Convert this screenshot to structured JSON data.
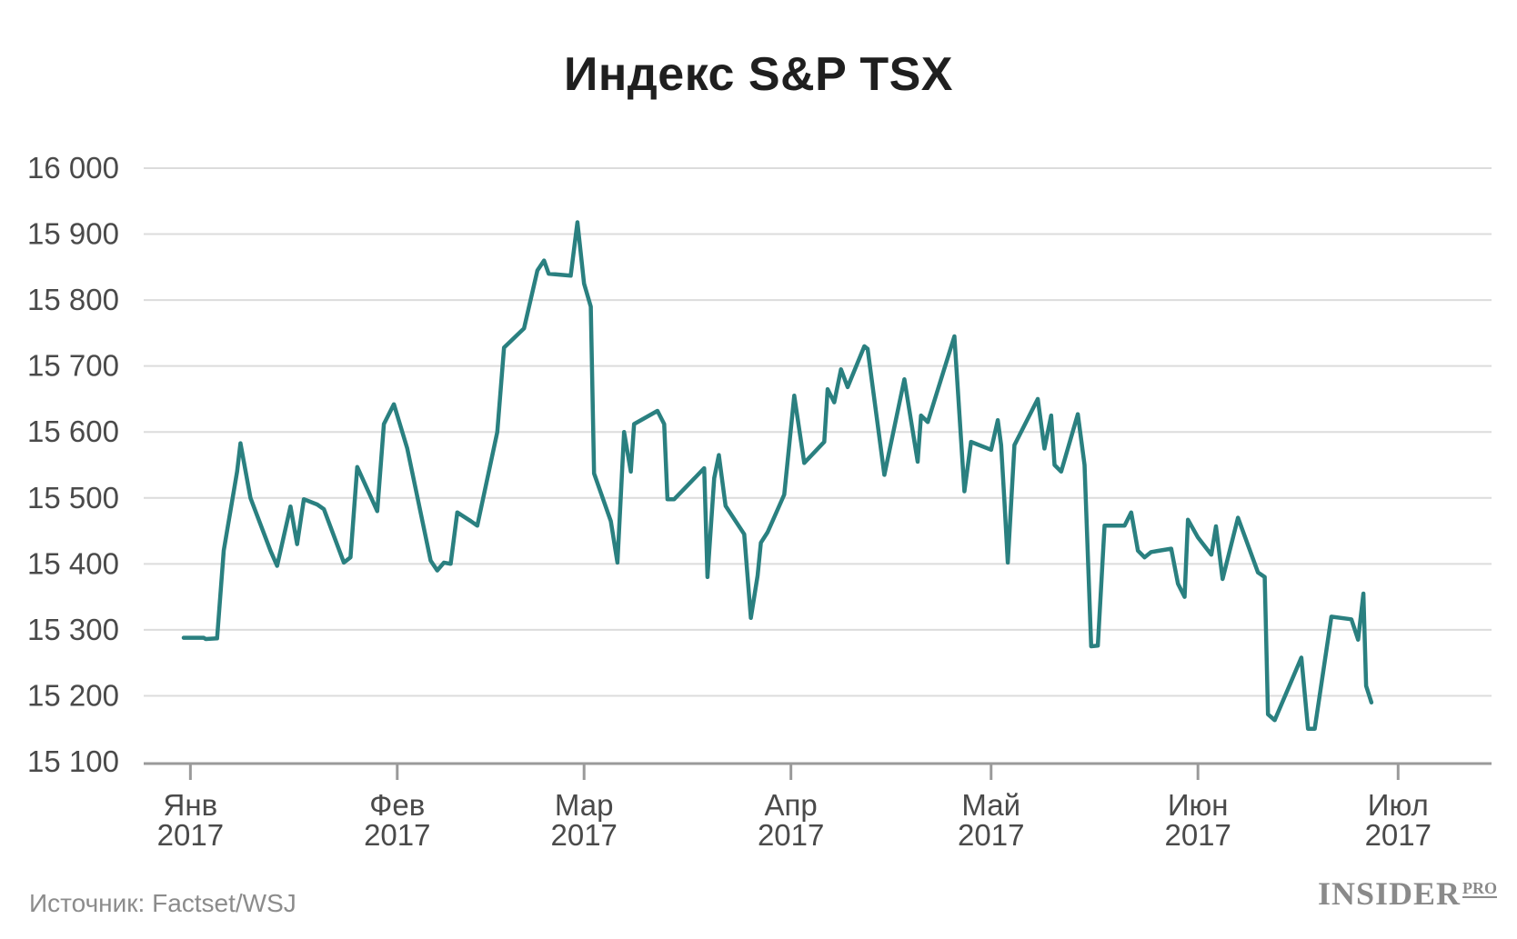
{
  "chart_data": {
    "type": "line",
    "title": "Индекс S&P TSX",
    "xlabel": "",
    "ylabel": "",
    "ylim": [
      15100,
      16000
    ],
    "y_ticks": [
      {
        "value": 16000,
        "label": "16 000"
      },
      {
        "value": 15900,
        "label": "15 900"
      },
      {
        "value": 15800,
        "label": "15 800"
      },
      {
        "value": 15700,
        "label": "15 700"
      },
      {
        "value": 15600,
        "label": "15 600"
      },
      {
        "value": 15500,
        "label": "15 500"
      },
      {
        "value": 15400,
        "label": "15 400"
      },
      {
        "value": 15300,
        "label": "15 300"
      },
      {
        "value": 15200,
        "label": "15 200"
      },
      {
        "value": 15100,
        "label": "15 100"
      }
    ],
    "x_ticks": [
      {
        "day": 0,
        "month": "Янв",
        "year": "2017"
      },
      {
        "day": 31,
        "month": "Фев",
        "year": "2017"
      },
      {
        "day": 59,
        "month": "Мар",
        "year": "2017"
      },
      {
        "day": 90,
        "month": "Апр",
        "year": "2017"
      },
      {
        "day": 120,
        "month": "Май",
        "year": "2017"
      },
      {
        "day": 151,
        "month": "Июн",
        "year": "2017"
      },
      {
        "day": 181,
        "month": "Июл",
        "year": "2017"
      }
    ],
    "xlim": [
      -7,
      195
    ],
    "grid": true,
    "line_color": "#2a8080",
    "series": [
      {
        "name": "S&P TSX",
        "points": [
          [
            -1,
            15288
          ],
          [
            2,
            15288
          ],
          [
            2.3,
            15286
          ],
          [
            4,
            15287
          ],
          [
            5,
            15420
          ],
          [
            7,
            15540
          ],
          [
            7.5,
            15583
          ],
          [
            9,
            15500
          ],
          [
            12,
            15420
          ],
          [
            13,
            15397
          ],
          [
            15,
            15487
          ],
          [
            16,
            15430
          ],
          [
            17,
            15498
          ],
          [
            19,
            15490
          ],
          [
            20,
            15483
          ],
          [
            23,
            15402
          ],
          [
            24,
            15410
          ],
          [
            25,
            15547
          ],
          [
            28,
            15480
          ],
          [
            29,
            15612
          ],
          [
            30.5,
            15642
          ],
          [
            32.5,
            15575
          ],
          [
            36,
            15405
          ],
          [
            37,
            15390
          ],
          [
            38,
            15402
          ],
          [
            39,
            15400
          ],
          [
            40,
            15478
          ],
          [
            42,
            15465
          ],
          [
            43,
            15458
          ],
          [
            46,
            15600
          ],
          [
            47,
            15728
          ],
          [
            50,
            15757
          ],
          [
            52,
            15845
          ],
          [
            53,
            15860
          ],
          [
            53.7,
            15840
          ],
          [
            57,
            15837
          ],
          [
            58,
            15918
          ],
          [
            59,
            15825
          ],
          [
            60,
            15790
          ],
          [
            60.5,
            15537
          ],
          [
            63,
            15465
          ],
          [
            64,
            15402
          ],
          [
            65,
            15600
          ],
          [
            66,
            15540
          ],
          [
            66.5,
            15612
          ],
          [
            70,
            15632
          ],
          [
            71,
            15612
          ],
          [
            71.5,
            15498
          ],
          [
            72.5,
            15498
          ],
          [
            77,
            15545
          ],
          [
            77.5,
            15380
          ],
          [
            78.5,
            15530
          ],
          [
            79.2,
            15565
          ],
          [
            80.2,
            15488
          ],
          [
            83,
            15445
          ],
          [
            84,
            15318
          ],
          [
            85,
            15382
          ],
          [
            85.5,
            15432
          ],
          [
            86.5,
            15448
          ],
          [
            89,
            15505
          ],
          [
            90.5,
            15655
          ],
          [
            92,
            15553
          ],
          [
            95,
            15585
          ],
          [
            95.5,
            15665
          ],
          [
            96.5,
            15645
          ],
          [
            97.5,
            15695
          ],
          [
            98.5,
            15668
          ],
          [
            101,
            15730
          ],
          [
            101.5,
            15726
          ],
          [
            104,
            15535
          ],
          [
            107,
            15680
          ],
          [
            109,
            15555
          ],
          [
            109.5,
            15625
          ],
          [
            110.5,
            15615
          ],
          [
            114.5,
            15745
          ],
          [
            116,
            15510
          ],
          [
            117,
            15585
          ],
          [
            120,
            15573
          ],
          [
            121,
            15618
          ],
          [
            121.5,
            15580
          ],
          [
            122,
            15495
          ],
          [
            122.5,
            15402
          ],
          [
            123.5,
            15580
          ],
          [
            127,
            15650
          ],
          [
            128,
            15575
          ],
          [
            129,
            15625
          ],
          [
            129.5,
            15550
          ],
          [
            130.5,
            15540
          ],
          [
            133,
            15627
          ],
          [
            134,
            15550
          ],
          [
            135,
            15275
          ],
          [
            136,
            15276
          ],
          [
            137,
            15458
          ],
          [
            140,
            15458
          ],
          [
            141,
            15478
          ],
          [
            142,
            15420
          ],
          [
            143,
            15410
          ],
          [
            144,
            15418
          ],
          [
            147,
            15423
          ],
          [
            148,
            15370
          ],
          [
            149,
            15350
          ],
          [
            149.5,
            15467
          ],
          [
            151,
            15440
          ],
          [
            153,
            15414
          ],
          [
            153.7,
            15457
          ],
          [
            154.7,
            15377
          ],
          [
            157,
            15470
          ],
          [
            160,
            15387
          ],
          [
            161,
            15380
          ],
          [
            161.5,
            15172
          ],
          [
            162.5,
            15163
          ],
          [
            166.5,
            15258
          ],
          [
            167.5,
            15150
          ],
          [
            168.5,
            15150
          ],
          [
            171,
            15320
          ],
          [
            174,
            15316
          ],
          [
            175,
            15285
          ],
          [
            175.8,
            15355
          ],
          [
            176.2,
            15215
          ],
          [
            177,
            15190
          ]
        ]
      }
    ]
  },
  "source_note": "Источник: Factset/WSJ",
  "brand": {
    "main": "INSIDER",
    "sub": "PRO"
  }
}
